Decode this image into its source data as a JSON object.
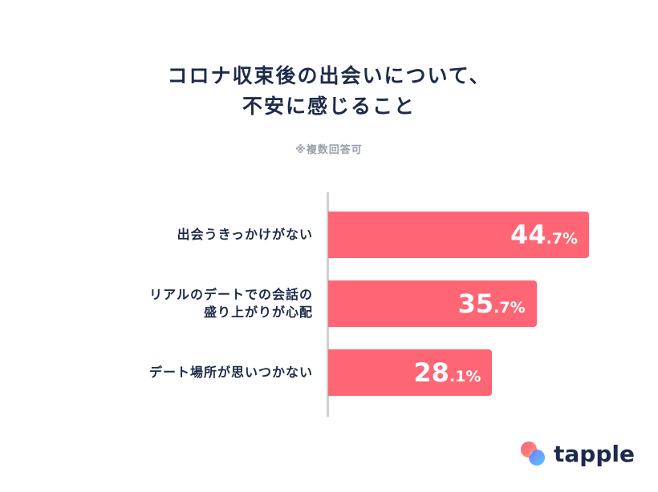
{
  "chart_data": {
    "type": "bar",
    "orientation": "horizontal",
    "title_lines": [
      "コロナ収束後の出会いについて、",
      "不安に感じること"
    ],
    "note": "※複数回答可",
    "categories": [
      [
        "出会うきっかけがない"
      ],
      [
        "リアルのデートでの会話の",
        "盛り上がりが心配"
      ],
      [
        "デート場所が思いつかない"
      ]
    ],
    "values": [
      44.7,
      35.7,
      28.1
    ],
    "unit": "%",
    "xlim": [
      0,
      55
    ],
    "bar_color": "#ff6675"
  },
  "logo": {
    "text": "tapple",
    "icon": "tapple-logo-icon"
  }
}
